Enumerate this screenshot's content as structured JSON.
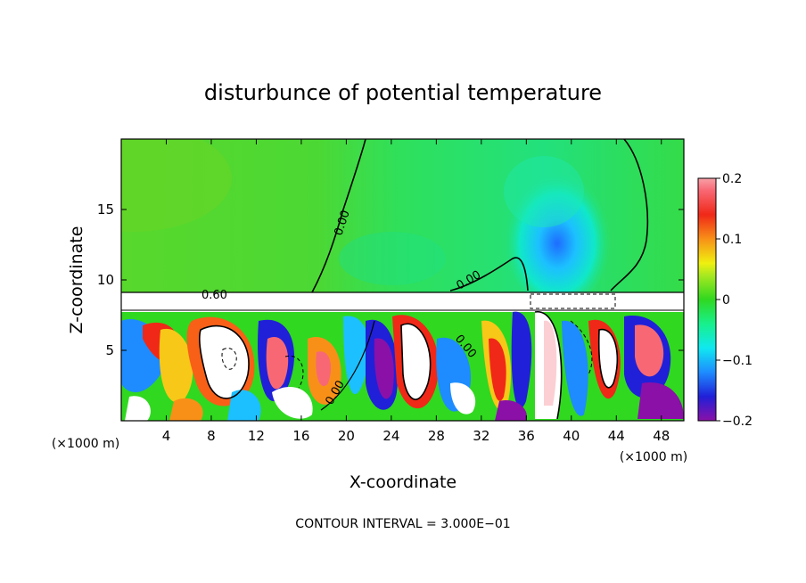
{
  "chart_data": {
    "type": "heatmap",
    "title": "disturbunce of potential temperature",
    "xlabel": "X-coordinate",
    "ylabel": "Z-coordinate",
    "x_unit_label": "(×1000 m)",
    "x_ticks": [
      4,
      8,
      12,
      16,
      20,
      24,
      28,
      32,
      36,
      40,
      44,
      48
    ],
    "y_ticks": [
      5,
      10,
      15
    ],
    "xlim": [
      0,
      50
    ],
    "ylim": [
      0,
      20
    ],
    "colorbar": {
      "range": [
        -0.2,
        0.2
      ],
      "tick_values": [
        0.2,
        0.1,
        0,
        -0.1,
        -0.2
      ],
      "tick_labels": [
        "0.2",
        "0.1",
        "0",
        "−0.1",
        "−0.2"
      ],
      "colors": [
        "#8b10a8",
        "#5a00c8",
        "#2020d8",
        "#1c54f0",
        "#1e8cff",
        "#1cc0ff",
        "#10e8f0",
        "#10f0c0",
        "#18f08c",
        "#20e050",
        "#30d820",
        "#a8e820",
        "#f0f010",
        "#f8c818",
        "#f89018",
        "#f86018",
        "#f02818",
        "#e8141e",
        "#f86874",
        "#f8a0a8"
      ]
    },
    "contour_interval": "CONTOUR INTERVAL = 3.000E−01",
    "contour_labels": [
      "0.00",
      "0.00",
      "0.00",
      "0.00",
      "0.60"
    ]
  }
}
